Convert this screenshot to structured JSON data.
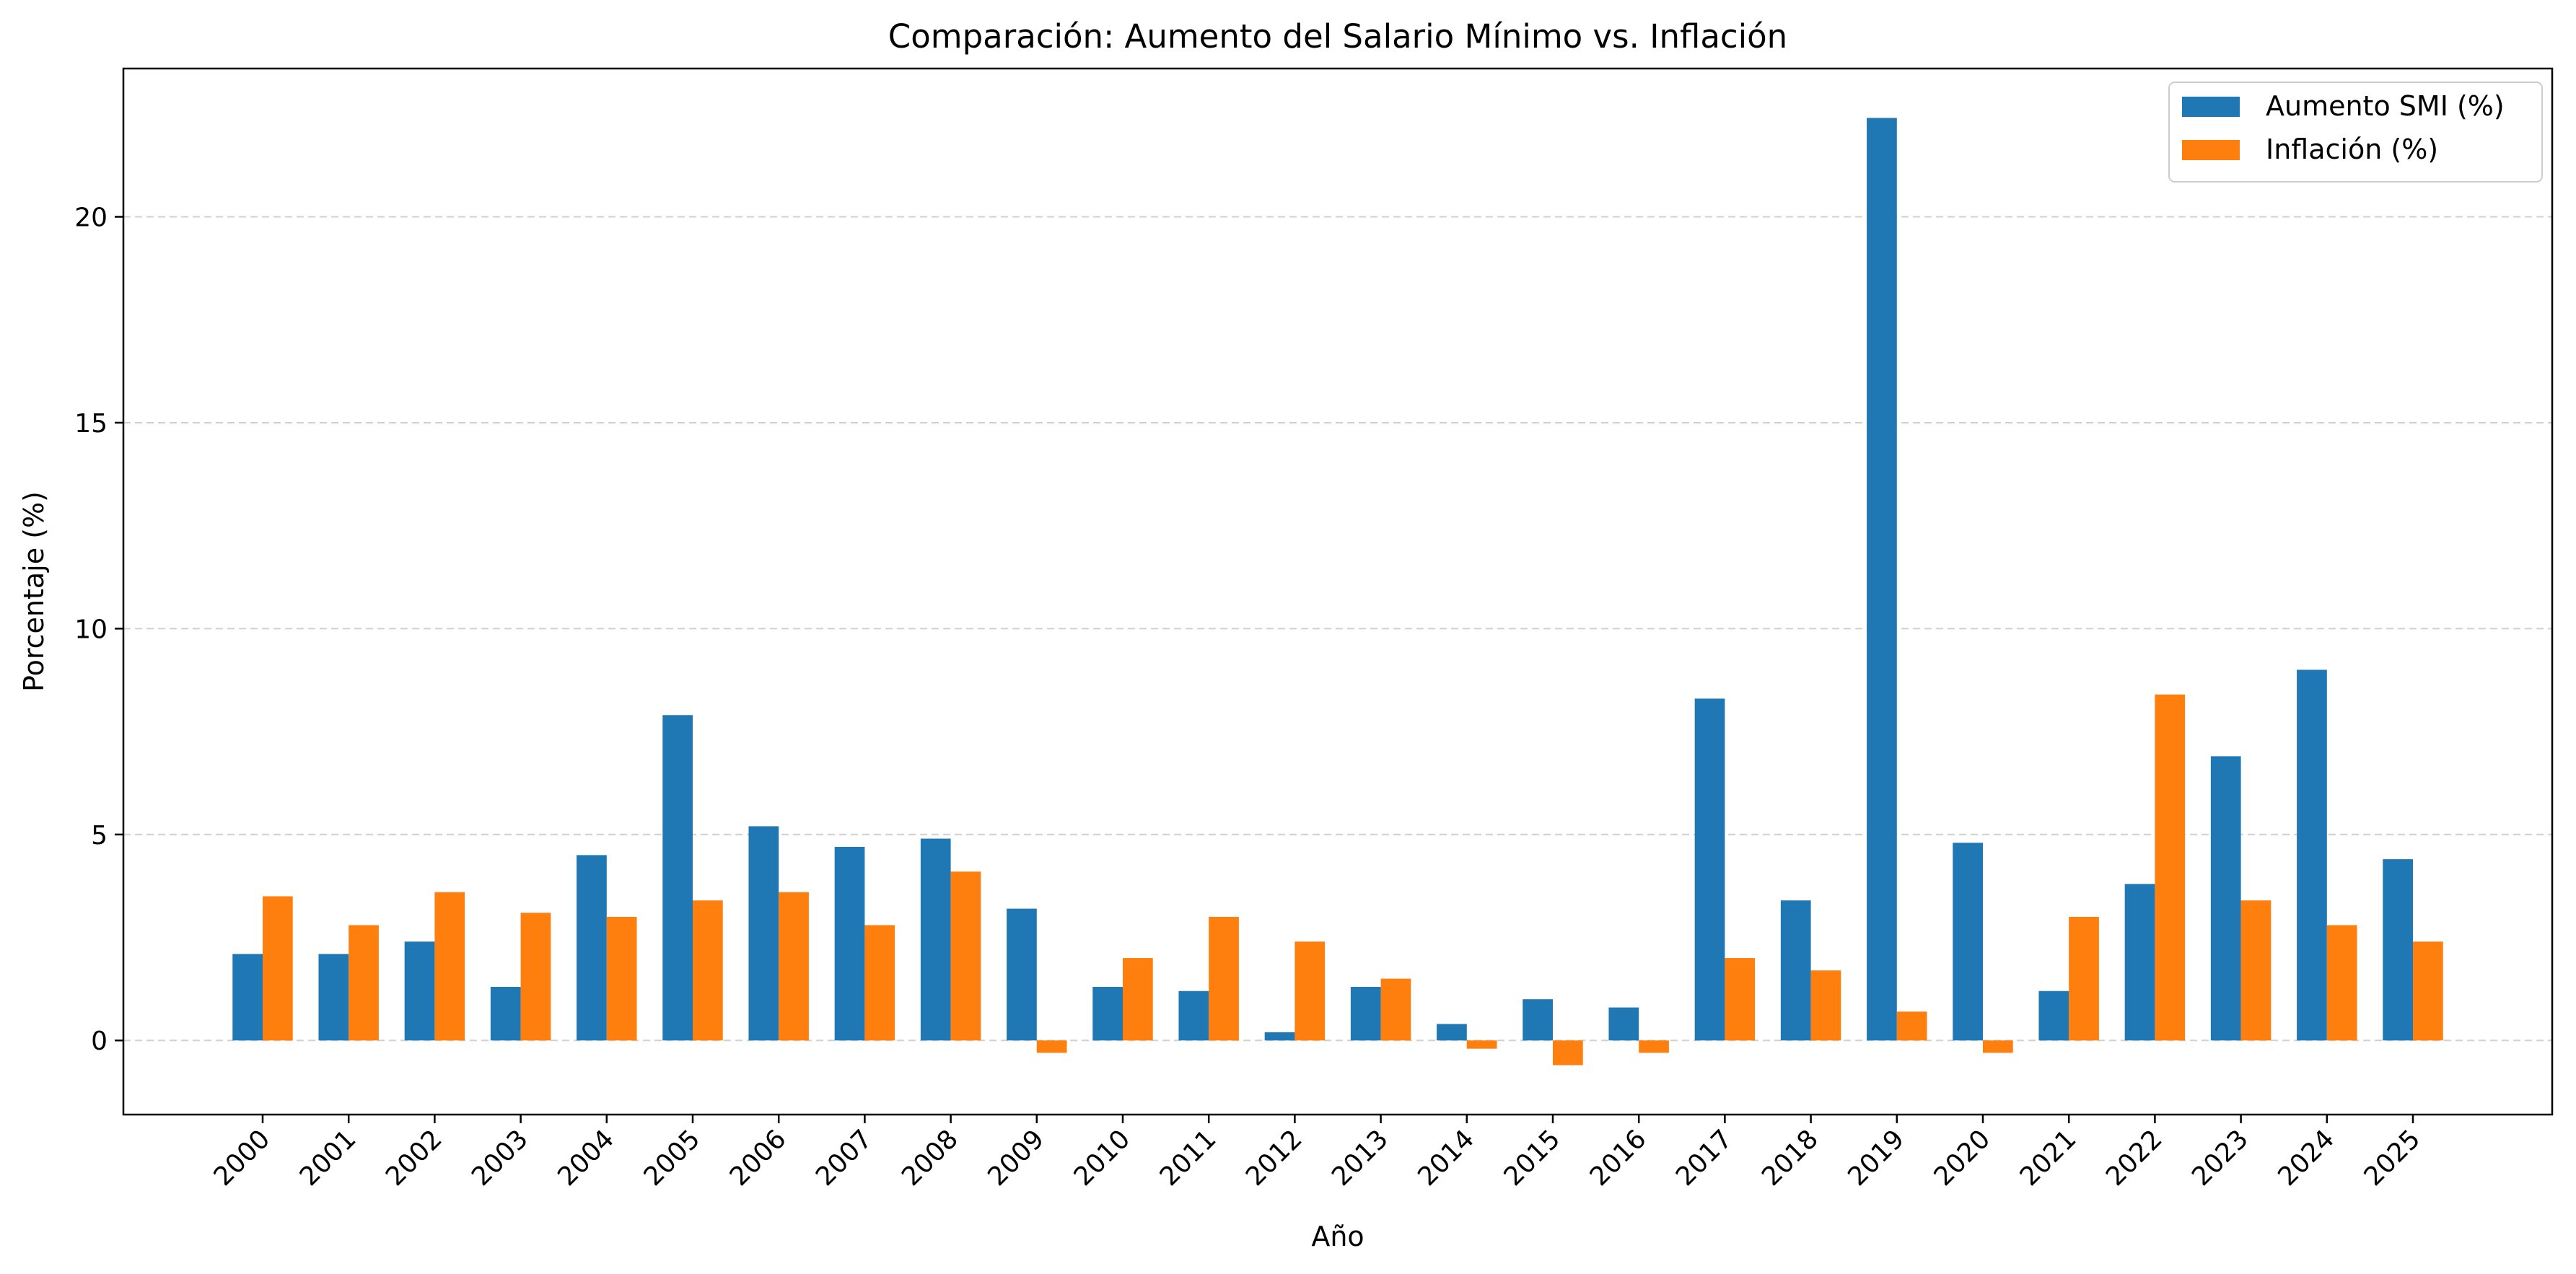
{
  "chart_data": {
    "type": "bar",
    "title": "Comparación: Aumento del Salario Mínimo vs. Inflación",
    "xlabel": "Año",
    "ylabel": "Porcentaje (%)",
    "categories": [
      "2000",
      "2001",
      "2002",
      "2003",
      "2004",
      "2005",
      "2006",
      "2007",
      "2008",
      "2009",
      "2010",
      "2011",
      "2012",
      "2013",
      "2014",
      "2015",
      "2016",
      "2017",
      "2018",
      "2019",
      "2020",
      "2021",
      "2022",
      "2023",
      "2024",
      "2025"
    ],
    "series": [
      {
        "name": "Aumento SMI (%)",
        "color": "#1f77b4",
        "values": [
          2.1,
          2.1,
          2.4,
          1.3,
          4.5,
          7.9,
          5.2,
          4.7,
          4.9,
          3.2,
          1.3,
          1.2,
          0.2,
          1.3,
          0.4,
          1.0,
          0.8,
          8.3,
          3.4,
          22.4,
          4.8,
          1.2,
          3.8,
          6.9,
          9.0,
          4.4
        ]
      },
      {
        "name": "Inflación (%)",
        "color": "#ff7f0e",
        "values": [
          3.5,
          2.8,
          3.6,
          3.1,
          3.0,
          3.4,
          3.6,
          2.8,
          4.1,
          -0.3,
          2.0,
          3.0,
          2.4,
          1.5,
          -0.2,
          -0.6,
          -0.3,
          2.0,
          1.7,
          0.7,
          -0.3,
          3.0,
          8.4,
          3.4,
          2.8,
          2.4
        ]
      }
    ],
    "yticks": [
      0,
      5,
      10,
      15,
      20
    ],
    "ylim": [
      -1.8,
      23.6
    ],
    "grid": "y-dashed",
    "legend_position": "top-right"
  }
}
